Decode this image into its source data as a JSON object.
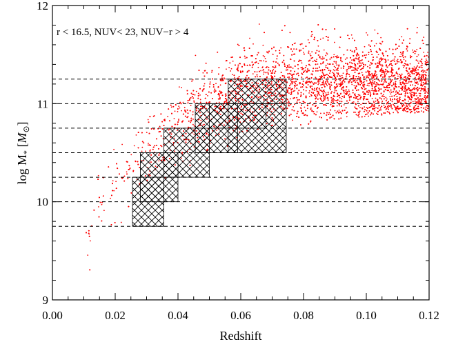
{
  "chart_data": {
    "type": "scatter",
    "title": "",
    "xlabel": "Redshift",
    "ylabel_text": "log M",
    "ylabel_subscript": "*",
    "ylabel_unit": "M",
    "ylabel_unit_subscript": "⊙",
    "xlim": [
      0.0,
      0.12
    ],
    "ylim": [
      9.0,
      12.0
    ],
    "xticks": [
      "0.00",
      "0.02",
      "0.04",
      "0.06",
      "0.08",
      "0.10",
      "0.12"
    ],
    "xtick_values": [
      0.0,
      0.02,
      0.04,
      0.06,
      0.08,
      0.1,
      0.12
    ],
    "yticks": [
      "9",
      "10",
      "11",
      "12"
    ],
    "ytick_values": [
      9,
      10,
      11,
      12
    ],
    "annotation": "r < 16.5, NUV< 23, NUV−r > 4",
    "point_color": "#ff0000",
    "hatch_color": "#000000",
    "dashed_levels": [
      9.75,
      10.0,
      10.25,
      10.5,
      10.75,
      11.0,
      11.25
    ],
    "hatched_bins": [
      {
        "x": [
          0.0255,
          0.0355
        ],
        "y": [
          9.75,
          10.25
        ]
      },
      {
        "x": [
          0.028,
          0.04
        ],
        "y": [
          10.0,
          10.5
        ]
      },
      {
        "x": [
          0.0355,
          0.05
        ],
        "y": [
          10.25,
          10.75
        ]
      },
      {
        "x": [
          0.0455,
          0.059
        ],
        "y": [
          10.5,
          11.0
        ]
      },
      {
        "x": [
          0.05,
          0.068
        ],
        "y": [
          10.75,
          11.0
        ]
      },
      {
        "x": [
          0.056,
          0.0745
        ],
        "y": [
          11.0,
          11.25
        ]
      },
      {
        "x": [
          0.056,
          0.0745
        ],
        "y": [
          10.5,
          11.0
        ]
      }
    ],
    "series": [
      {
        "marker": "dot",
        "n_points": 9000,
        "x_range": [
          0.01,
          0.12
        ],
        "trend": "log M lower envelope rises from ~9.1 at z=0.012 to ~10.5 at z=0.07 and ~10.9 at z=0.12; upper envelope ~11.7 near z=0.09"
      }
    ]
  }
}
